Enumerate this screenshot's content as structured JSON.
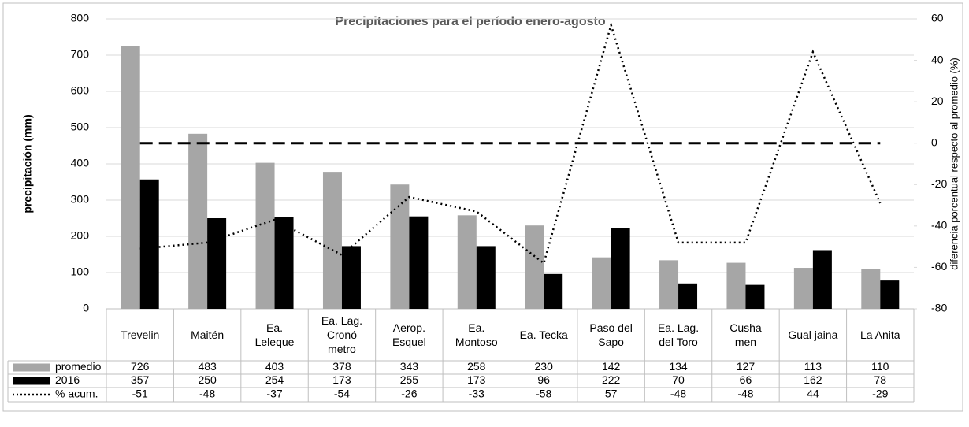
{
  "chart_data": {
    "type": "bar",
    "title": "Precipitaciones para el período enero-agosto",
    "ylabel": "precipitación (mm)",
    "y2label": "diferencia porcentual respecto al promedio (%)",
    "categories": [
      "Trevelin",
      "Maitén",
      "Ea.\nLeleque",
      "Ea. Lag.\nCronó\nmetro",
      "Aerop.\nEsquel",
      "Ea.\nMontoso",
      "Ea. Tecka",
      "Paso del\nSapo",
      "Ea. Lag.\ndel Toro",
      "Cusha\nmen",
      "Gual jaina",
      "La Anita"
    ],
    "series": [
      {
        "name": "promedio",
        "color": "#a6a6a6",
        "values": [
          726,
          483,
          403,
          378,
          343,
          258,
          230,
          142,
          134,
          127,
          113,
          110
        ]
      },
      {
        "name": "2016",
        "color": "#000000",
        "values": [
          357,
          250,
          254,
          173,
          255,
          173,
          96,
          222,
          70,
          66,
          162,
          78
        ]
      },
      {
        "name": "% acum.",
        "color": "#000000",
        "type": "line",
        "style": "dotted",
        "axis": "y2",
        "values": [
          -51,
          -48,
          -37,
          -54,
          -26,
          -33,
          -58,
          57,
          -48,
          -48,
          44,
          -29
        ]
      }
    ],
    "y2_reference_line": 0,
    "ylim": [
      0,
      800
    ],
    "yticks": [
      0,
      100,
      200,
      300,
      400,
      500,
      600,
      700,
      800
    ],
    "y2lim": [
      -80,
      60
    ],
    "y2ticks": [
      -80,
      -60,
      -40,
      -20,
      0,
      20,
      40,
      60
    ],
    "grid": true,
    "legend": "table"
  }
}
